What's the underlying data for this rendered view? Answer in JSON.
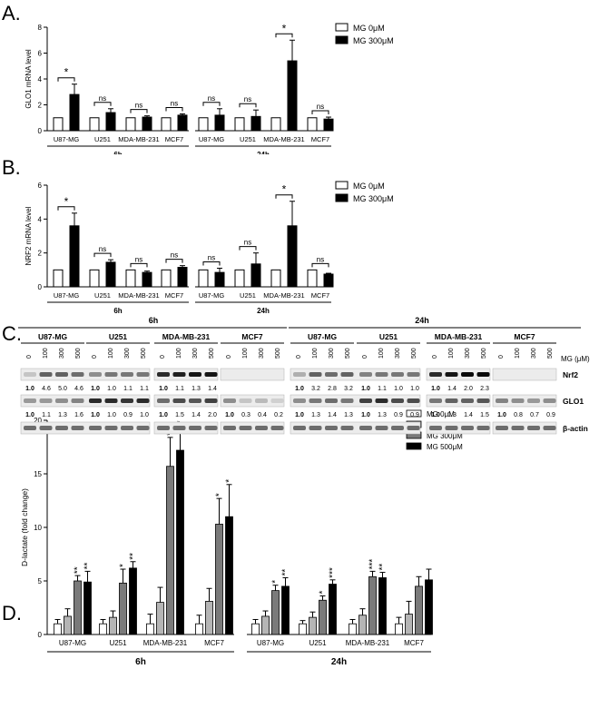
{
  "chart_data": [
    {
      "panel": "A.",
      "type": "bar",
      "ylabel": "GLO1 mRNA level",
      "ylim": [
        0,
        8
      ],
      "yticks": [
        0,
        2,
        4,
        6,
        8
      ],
      "groups": [
        {
          "label": "6h",
          "categories": [
            "U87-MG",
            "U251",
            "MDA-MB-231",
            "MCF7"
          ]
        },
        {
          "label": "24h",
          "categories": [
            "U87-MG",
            "U251",
            "MDA-MB-231",
            "MCF7"
          ]
        }
      ],
      "series": [
        {
          "name": "MG 0μM",
          "values": [
            1,
            1,
            1,
            1,
            1,
            1,
            1,
            1
          ],
          "errors": [
            0,
            0,
            0,
            0,
            0,
            0,
            0,
            0
          ]
        },
        {
          "name": "MG 300μM",
          "values": [
            2.8,
            1.4,
            1.05,
            1.2,
            1.2,
            1.1,
            5.4,
            0.9
          ],
          "errors": [
            0.8,
            0.3,
            0.1,
            0.1,
            0.5,
            0.5,
            1.6,
            0.15
          ]
        }
      ],
      "annotations": [
        "*",
        "ns",
        "ns",
        "ns",
        "ns",
        "ns",
        "*",
        "ns"
      ],
      "legend_position": "top-right"
    },
    {
      "panel": "B.",
      "type": "bar",
      "ylabel": "NRF2 mRNA level",
      "ylim": [
        0,
        6
      ],
      "yticks": [
        0,
        2,
        4,
        6
      ],
      "groups": [
        {
          "label": "6h",
          "categories": [
            "U87-MG",
            "U251",
            "MDA-MB-231",
            "MCF7"
          ]
        },
        {
          "label": "24h",
          "categories": [
            "U87-MG",
            "U251",
            "MDA-MB-231",
            "MCF7"
          ]
        }
      ],
      "series": [
        {
          "name": "MG 0μM",
          "values": [
            1,
            1,
            1,
            1,
            1,
            1,
            1,
            1
          ],
          "errors": [
            0,
            0,
            0,
            0,
            0,
            0,
            0,
            0
          ]
        },
        {
          "name": "MG 300μM",
          "values": [
            3.6,
            1.45,
            0.85,
            1.15,
            0.85,
            1.35,
            3.6,
            0.75
          ],
          "errors": [
            0.75,
            0.15,
            0.08,
            0.1,
            0.25,
            0.65,
            1.45,
            0.05
          ]
        }
      ],
      "annotations": [
        "*",
        "ns",
        "ns",
        "ns",
        "ns",
        "ns",
        "*",
        "ns"
      ],
      "legend_position": "top-right"
    },
    {
      "panel": "D.",
      "type": "bar",
      "ylabel": "D-lactate (fold change)",
      "ylim": [
        0,
        20
      ],
      "yticks": [
        0,
        5,
        10,
        15,
        20
      ],
      "groups": [
        {
          "label": "6h",
          "categories": [
            "U87-MG",
            "U251",
            "MDA-MB-231",
            "MCF7"
          ]
        },
        {
          "label": "24h",
          "categories": [
            "U87-MG",
            "U251",
            "MDA-MB-231",
            "MCF7"
          ]
        }
      ],
      "series": [
        {
          "name": "MG 0μM",
          "values": [
            1,
            1,
            1,
            1,
            1,
            1,
            1,
            1
          ],
          "errors": [
            0.4,
            0.4,
            0.9,
            0.8,
            0.4,
            0.3,
            0.4,
            0.6
          ]
        },
        {
          "name": "MG 100μM",
          "values": [
            1.7,
            1.6,
            3.0,
            3.1,
            1.7,
            1.6,
            1.8,
            1.9
          ],
          "errors": [
            0.7,
            0.6,
            1.4,
            1.2,
            0.5,
            0.5,
            0.6,
            1.2
          ]
        },
        {
          "name": "MG 300μM",
          "values": [
            5.0,
            4.8,
            15.7,
            10.3,
            4.1,
            3.2,
            5.4,
            4.5
          ],
          "errors": [
            0.5,
            1.3,
            2.7,
            2.4,
            0.5,
            0.4,
            0.5,
            0.9
          ]
        },
        {
          "name": "MG 500μM",
          "values": [
            4.9,
            6.2,
            17.2,
            11.0,
            4.5,
            4.7,
            5.3,
            5.1
          ],
          "errors": [
            1.0,
            0.6,
            1.6,
            3.0,
            0.8,
            0.4,
            0.5,
            1.0
          ]
        }
      ],
      "annotations_300": [
        "**",
        "*",
        "**",
        "*",
        "*",
        "*",
        "***",
        ""
      ],
      "annotations_500": [
        "**",
        "**",
        "***",
        "*",
        "**",
        "***",
        "**",
        ""
      ],
      "legend_position": "top-right"
    }
  ],
  "blot": {
    "panel": "C.",
    "time_labels": [
      "6h",
      "24h"
    ],
    "cell_lines": [
      "U87-MG",
      "U251",
      "MDA-MB-231",
      "MCF7",
      "U87-MG",
      "U251",
      "MDA-MB-231",
      "MCF7"
    ],
    "doses": [
      "0",
      "100",
      "300",
      "500"
    ],
    "dose_label": "MG (μM)",
    "rows": [
      {
        "name": "Nrf2",
        "values": [
          [
            "1.0",
            "4.6",
            "5.0",
            "4.6"
          ],
          [
            "1.0",
            "1.0",
            "1.1",
            "1.1"
          ],
          [
            "1.0",
            "1.1",
            "1.3",
            "1.4"
          ],
          [
            "",
            "",
            "",
            ""
          ],
          [
            "1.0",
            "3.2",
            "2.8",
            "3.2"
          ],
          [
            "1.0",
            "1.1",
            "1.0",
            "1.0"
          ],
          [
            "1.0",
            "1.4",
            "2.0",
            "2.3"
          ],
          [
            "",
            "",
            "",
            ""
          ]
        ]
      },
      {
        "name": "GLO1",
        "values": [
          [
            "1.0",
            "1.1",
            "1.3",
            "1.6"
          ],
          [
            "1.0",
            "1.0",
            "0.9",
            "1.0"
          ],
          [
            "1.0",
            "1.5",
            "1.4",
            "2.0"
          ],
          [
            "1.0",
            "0.3",
            "0.4",
            "0.2"
          ],
          [
            "1.0",
            "1.3",
            "1.4",
            "1.3"
          ],
          [
            "1.0",
            "1.3",
            "0.9",
            "0.9"
          ],
          [
            "1.0",
            "1.3",
            "1.4",
            "1.5"
          ],
          [
            "1.0",
            "0.8",
            "0.7",
            "0.9"
          ]
        ]
      },
      {
        "name": "β-actin",
        "values": []
      }
    ]
  },
  "colors": {
    "bar_0": "#ffffff",
    "bar_100": "#b5b5b5",
    "bar_300": "#7a7a7a",
    "bar_500": "#000000"
  }
}
